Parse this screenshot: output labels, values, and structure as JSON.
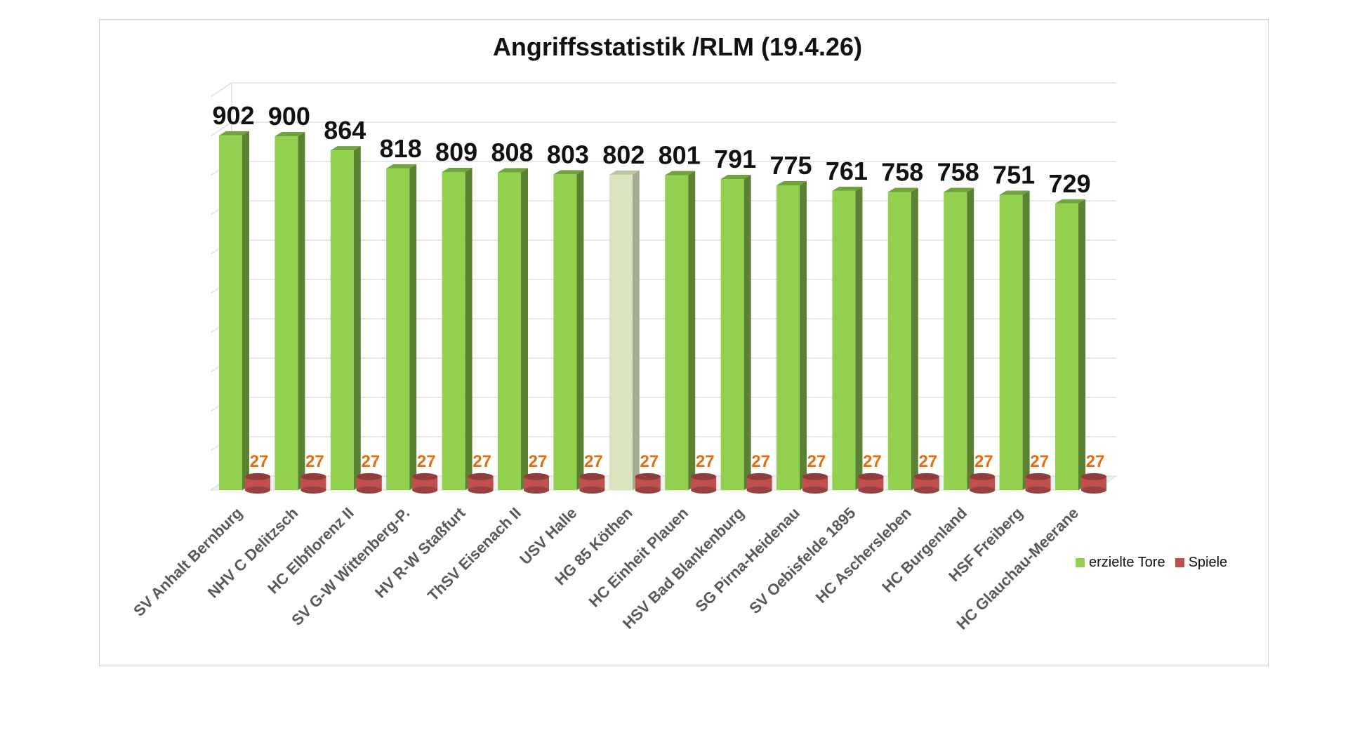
{
  "chart_data": {
    "type": "bar",
    "title": "Angriffsstatistik /RLM (19.4.26)",
    "categories": [
      "SV Anhalt Bernburg",
      "NHV C Delitzsch",
      "HC Elbflorenz II",
      "SV G-W Wittenberg-P.",
      "HV R-W Staßfurt",
      "ThSV Eisenach II",
      "USV Halle",
      "HG 85 Köthen",
      "HC Einheit Plauen",
      "HSV Bad Blankenburg",
      "SG Pirna-Heidenau",
      "SV Oebisfelde 1895",
      "HC Aschersleben",
      "HC Burgenland",
      "HSF Freiberg",
      "HC Glauchau-Meerane"
    ],
    "series": [
      {
        "name": "erzielte Tore",
        "color": "#92d050",
        "values": [
          902,
          900,
          864,
          818,
          809,
          808,
          803,
          802,
          801,
          791,
          775,
          761,
          758,
          758,
          751,
          729
        ]
      },
      {
        "name": "Spiele",
        "color": "#c0504d",
        "values": [
          27,
          27,
          27,
          27,
          27,
          27,
          27,
          27,
          27,
          27,
          27,
          27,
          27,
          27,
          27,
          27
        ]
      }
    ],
    "highlight_index": 7,
    "highlight_color": "#d7e4bd",
    "spiele_label_color": "#e46c0a",
    "ylim": [
      0,
      1000
    ],
    "grid": true,
    "legend": "right"
  }
}
